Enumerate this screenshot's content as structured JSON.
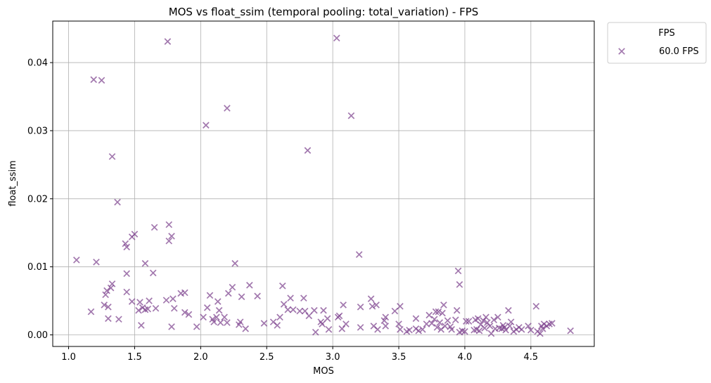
{
  "chart_data": {
    "type": "scatter",
    "title": "MOS vs float_ssim (temporal pooling: total_variation) - FPS",
    "xlabel": "MOS",
    "ylabel": "float_ssim",
    "xlim": [
      0.88,
      4.98
    ],
    "ylim": [
      -0.0017,
      0.0461
    ],
    "xticks": [
      1.0,
      1.5,
      2.0,
      2.5,
      3.0,
      3.5,
      4.0,
      4.5
    ],
    "xtick_labels": [
      "1.0",
      "1.5",
      "2.0",
      "2.5",
      "3.0",
      "3.5",
      "4.0",
      "4.5"
    ],
    "yticks": [
      0.0,
      0.01,
      0.02,
      0.03,
      0.04
    ],
    "ytick_labels": [
      "0.00",
      "0.01",
      "0.02",
      "0.03",
      "0.04"
    ],
    "grid": true,
    "legend": {
      "title": "FPS",
      "placement": "outside upper right"
    },
    "series": [
      {
        "name": "60.0 FPS",
        "color": "#7b3f8c",
        "marker": "x",
        "points": [
          [
            1.06,
            0.011
          ],
          [
            1.17,
            0.0034
          ],
          [
            1.19,
            0.0375
          ],
          [
            1.21,
            0.0107
          ],
          [
            1.25,
            0.0374
          ],
          [
            1.27,
            0.0044
          ],
          [
            1.28,
            0.0059
          ],
          [
            1.29,
            0.0065
          ],
          [
            1.3,
            0.0041
          ],
          [
            1.3,
            0.0024
          ],
          [
            1.32,
            0.0069
          ],
          [
            1.33,
            0.0262
          ],
          [
            1.33,
            0.0075
          ],
          [
            1.37,
            0.0195
          ],
          [
            1.38,
            0.0023
          ],
          [
            1.43,
            0.0134
          ],
          [
            1.44,
            0.0129
          ],
          [
            1.44,
            0.009
          ],
          [
            1.44,
            0.0063
          ],
          [
            1.48,
            0.0049
          ],
          [
            1.48,
            0.0144
          ],
          [
            1.5,
            0.0148
          ],
          [
            1.53,
            0.0036
          ],
          [
            1.54,
            0.0048
          ],
          [
            1.55,
            0.0014
          ],
          [
            1.56,
            0.004
          ],
          [
            1.58,
            0.0105
          ],
          [
            1.58,
            0.0037
          ],
          [
            1.6,
            0.0038
          ],
          [
            1.61,
            0.005
          ],
          [
            1.64,
            0.0091
          ],
          [
            1.65,
            0.0158
          ],
          [
            1.66,
            0.0039
          ],
          [
            1.74,
            0.0051
          ],
          [
            1.75,
            0.0431
          ],
          [
            1.76,
            0.0162
          ],
          [
            1.76,
            0.0138
          ],
          [
            1.78,
            0.0145
          ],
          [
            1.78,
            0.0012
          ],
          [
            1.79,
            0.0053
          ],
          [
            1.8,
            0.0039
          ],
          [
            1.85,
            0.0061
          ],
          [
            1.88,
            0.0062
          ],
          [
            1.88,
            0.0033
          ],
          [
            1.91,
            0.003
          ],
          [
            1.97,
            0.0012
          ],
          [
            2.02,
            0.0026
          ],
          [
            2.04,
            0.0308
          ],
          [
            2.05,
            0.004
          ],
          [
            2.07,
            0.0058
          ],
          [
            2.09,
            0.0023
          ],
          [
            2.1,
            0.0019
          ],
          [
            2.12,
            0.0026
          ],
          [
            2.13,
            0.0049
          ],
          [
            2.14,
            0.0036
          ],
          [
            2.15,
            0.0018
          ],
          [
            2.18,
            0.0026
          ],
          [
            2.2,
            0.0333
          ],
          [
            2.2,
            0.0018
          ],
          [
            2.21,
            0.0061
          ],
          [
            2.24,
            0.007
          ],
          [
            2.26,
            0.0105
          ],
          [
            2.29,
            0.0015
          ],
          [
            2.3,
            0.0019
          ],
          [
            2.31,
            0.0056
          ],
          [
            2.34,
            0.0009
          ],
          [
            2.37,
            0.0073
          ],
          [
            2.43,
            0.0057
          ],
          [
            2.48,
            0.0017
          ],
          [
            2.55,
            0.0019
          ],
          [
            2.58,
            0.0014
          ],
          [
            2.6,
            0.0026
          ],
          [
            2.62,
            0.0072
          ],
          [
            2.63,
            0.0045
          ],
          [
            2.66,
            0.0037
          ],
          [
            2.68,
            0.0054
          ],
          [
            2.7,
            0.0037
          ],
          [
            2.75,
            0.0035
          ],
          [
            2.78,
            0.0054
          ],
          [
            2.79,
            0.0035
          ],
          [
            2.81,
            0.0271
          ],
          [
            2.82,
            0.0028
          ],
          [
            2.86,
            0.0036
          ],
          [
            2.87,
            0.0004
          ],
          [
            2.91,
            0.0019
          ],
          [
            2.92,
            0.0016
          ],
          [
            2.93,
            0.0036
          ],
          [
            2.96,
            0.0024
          ],
          [
            2.97,
            0.0008
          ],
          [
            3.03,
            0.0436
          ],
          [
            3.04,
            0.0026
          ],
          [
            3.05,
            0.0028
          ],
          [
            3.07,
            0.0009
          ],
          [
            3.08,
            0.0044
          ],
          [
            3.1,
            0.0016
          ],
          [
            3.14,
            0.0322
          ],
          [
            3.2,
            0.0118
          ],
          [
            3.21,
            0.0041
          ],
          [
            3.21,
            0.0011
          ],
          [
            3.29,
            0.0053
          ],
          [
            3.3,
            0.0042
          ],
          [
            3.31,
            0.0013
          ],
          [
            3.33,
            0.0044
          ],
          [
            3.34,
            0.0008
          ],
          [
            3.39,
            0.0021
          ],
          [
            3.4,
            0.0026
          ],
          [
            3.4,
            0.0013
          ],
          [
            3.47,
            0.0035
          ],
          [
            3.5,
            0.0016
          ],
          [
            3.51,
            0.0042
          ],
          [
            3.51,
            0.0008
          ],
          [
            3.56,
            0.0005
          ],
          [
            3.58,
            0.0007
          ],
          [
            3.63,
            0.0024
          ],
          [
            3.63,
            0.0009
          ],
          [
            3.65,
            0.0006
          ],
          [
            3.68,
            0.0008
          ],
          [
            3.71,
            0.0016
          ],
          [
            3.73,
            0.0029
          ],
          [
            3.75,
            0.0017
          ],
          [
            3.77,
            0.0023
          ],
          [
            3.78,
            0.0034
          ],
          [
            3.79,
            0.0011
          ],
          [
            3.8,
            0.0034
          ],
          [
            3.81,
            0.0018
          ],
          [
            3.82,
            0.0008
          ],
          [
            3.83,
            0.0032
          ],
          [
            3.84,
            0.0044
          ],
          [
            3.85,
            0.0013
          ],
          [
            3.87,
            0.0021
          ],
          [
            3.89,
            0.0012
          ],
          [
            3.9,
            0.0008
          ],
          [
            3.93,
            0.0022
          ],
          [
            3.94,
            0.0036
          ],
          [
            3.95,
            0.0094
          ],
          [
            3.96,
            0.0074
          ],
          [
            3.96,
            0.0004
          ],
          [
            3.98,
            0.0006
          ],
          [
            4.0,
            0.0005
          ],
          [
            4.01,
            0.002
          ],
          [
            4.03,
            0.002
          ],
          [
            4.07,
            0.0007
          ],
          [
            4.08,
            0.0022
          ],
          [
            4.09,
            0.0008
          ],
          [
            4.1,
            0.0024
          ],
          [
            4.11,
            0.0006
          ],
          [
            4.12,
            0.0015
          ],
          [
            4.14,
            0.0021
          ],
          [
            4.15,
            0.001
          ],
          [
            4.16,
            0.0026
          ],
          [
            4.17,
            0.0018
          ],
          [
            4.19,
            0.0013
          ],
          [
            4.2,
            0.0002
          ],
          [
            4.22,
            0.0022
          ],
          [
            4.23,
            0.0009
          ],
          [
            4.25,
            0.0026
          ],
          [
            4.26,
            0.001
          ],
          [
            4.28,
            0.0009
          ],
          [
            4.29,
            0.0014
          ],
          [
            4.3,
            0.0011
          ],
          [
            4.31,
            0.0007
          ],
          [
            4.33,
            0.0036
          ],
          [
            4.34,
            0.0013
          ],
          [
            4.35,
            0.0019
          ],
          [
            4.37,
            0.0005
          ],
          [
            4.39,
            0.0008
          ],
          [
            4.41,
            0.0011
          ],
          [
            4.43,
            0.0008
          ],
          [
            4.48,
            0.0013
          ],
          [
            4.5,
            0.0007
          ],
          [
            4.54,
            0.0042
          ],
          [
            4.55,
            0.0005
          ],
          [
            4.57,
            0.0002
          ],
          [
            4.58,
            0.0013
          ],
          [
            4.59,
            0.0009
          ],
          [
            4.6,
            0.0016
          ],
          [
            4.62,
            0.0013
          ],
          [
            4.64,
            0.0016
          ],
          [
            4.66,
            0.0017
          ],
          [
            4.8,
            0.0006
          ]
        ]
      }
    ]
  }
}
